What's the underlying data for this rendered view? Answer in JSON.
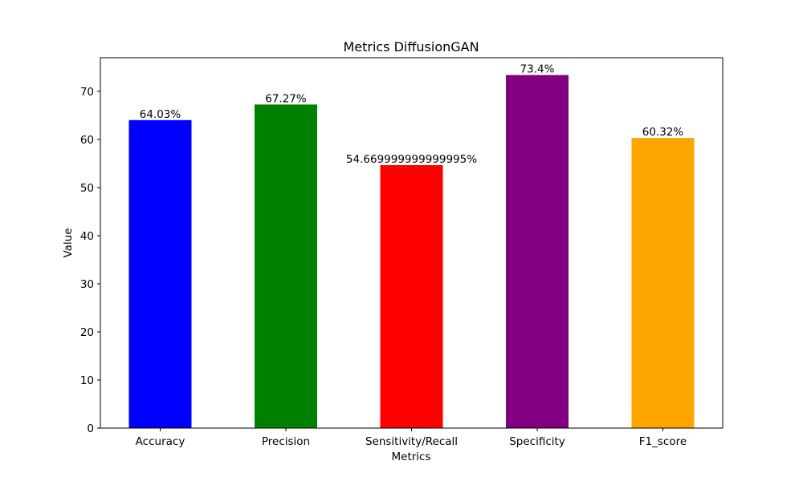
{
  "chart_data": {
    "type": "bar",
    "title": "Metrics DiffusionGAN",
    "xlabel": "Metrics",
    "ylabel": "Value",
    "categories": [
      "Accuracy",
      "Precision",
      "Sensitivity/Recall",
      "Specificity",
      "F1_score"
    ],
    "values": [
      64.03,
      67.27,
      54.669999999999995,
      73.4,
      60.32
    ],
    "data_labels": [
      "64.03%",
      "67.27%",
      "54.669999999999995%",
      "73.4%",
      "60.32%"
    ],
    "colors": [
      "#0000ff",
      "#008000",
      "#ff0000",
      "#800080",
      "#ffa500"
    ],
    "ylim": [
      0,
      77
    ],
    "yticks": [
      0,
      10,
      20,
      30,
      40,
      50,
      60,
      70
    ],
    "grid": false,
    "legend": "none"
  }
}
